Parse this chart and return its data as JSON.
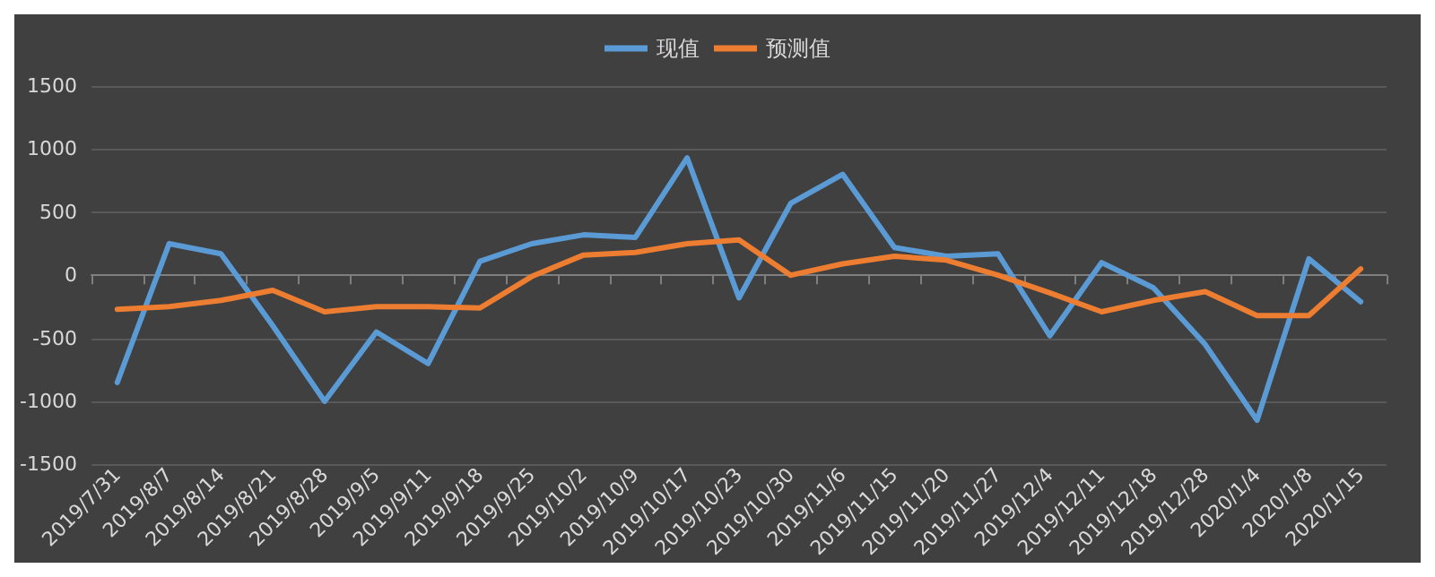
{
  "chart_data": {
    "type": "line",
    "categories": [
      "2019/7/31",
      "2019/8/7",
      "2019/8/14",
      "2019/8/21",
      "2019/8/28",
      "2019/9/5",
      "2019/9/11",
      "2019/9/18",
      "2019/9/25",
      "2019/10/2",
      "2019/10/9",
      "2019/10/17",
      "2019/10/23",
      "2019/10/30",
      "2019/11/6",
      "2019/11/15",
      "2019/11/20",
      "2019/11/27",
      "2019/12/4",
      "2019/12/11",
      "2019/12/18",
      "2019/12/28",
      "2020/1/4",
      "2020/1/8",
      "2020/1/15"
    ],
    "series": [
      {
        "name": "现值",
        "color": "#5b9bd5",
        "values": [
          -850,
          250,
          170,
          -400,
          -1000,
          -450,
          -700,
          110,
          250,
          320,
          300,
          930,
          -180,
          570,
          800,
          220,
          150,
          170,
          -480,
          100,
          -100,
          -550,
          -1150,
          130,
          -210
        ]
      },
      {
        "name": "预测值",
        "color": "#ed7d31",
        "values": [
          -270,
          -250,
          -200,
          -120,
          -290,
          -250,
          -250,
          -260,
          -10,
          160,
          180,
          250,
          280,
          0,
          90,
          150,
          120,
          0,
          -140,
          -290,
          -200,
          -130,
          -320,
          -320,
          50
        ]
      }
    ],
    "ylim": [
      -1500,
      1500
    ],
    "yticks": [
      -1500,
      -1000,
      -500,
      0,
      500,
      1000,
      1500
    ],
    "grid": "y",
    "legend": "top",
    "marker": "none",
    "line_style": "solid"
  }
}
